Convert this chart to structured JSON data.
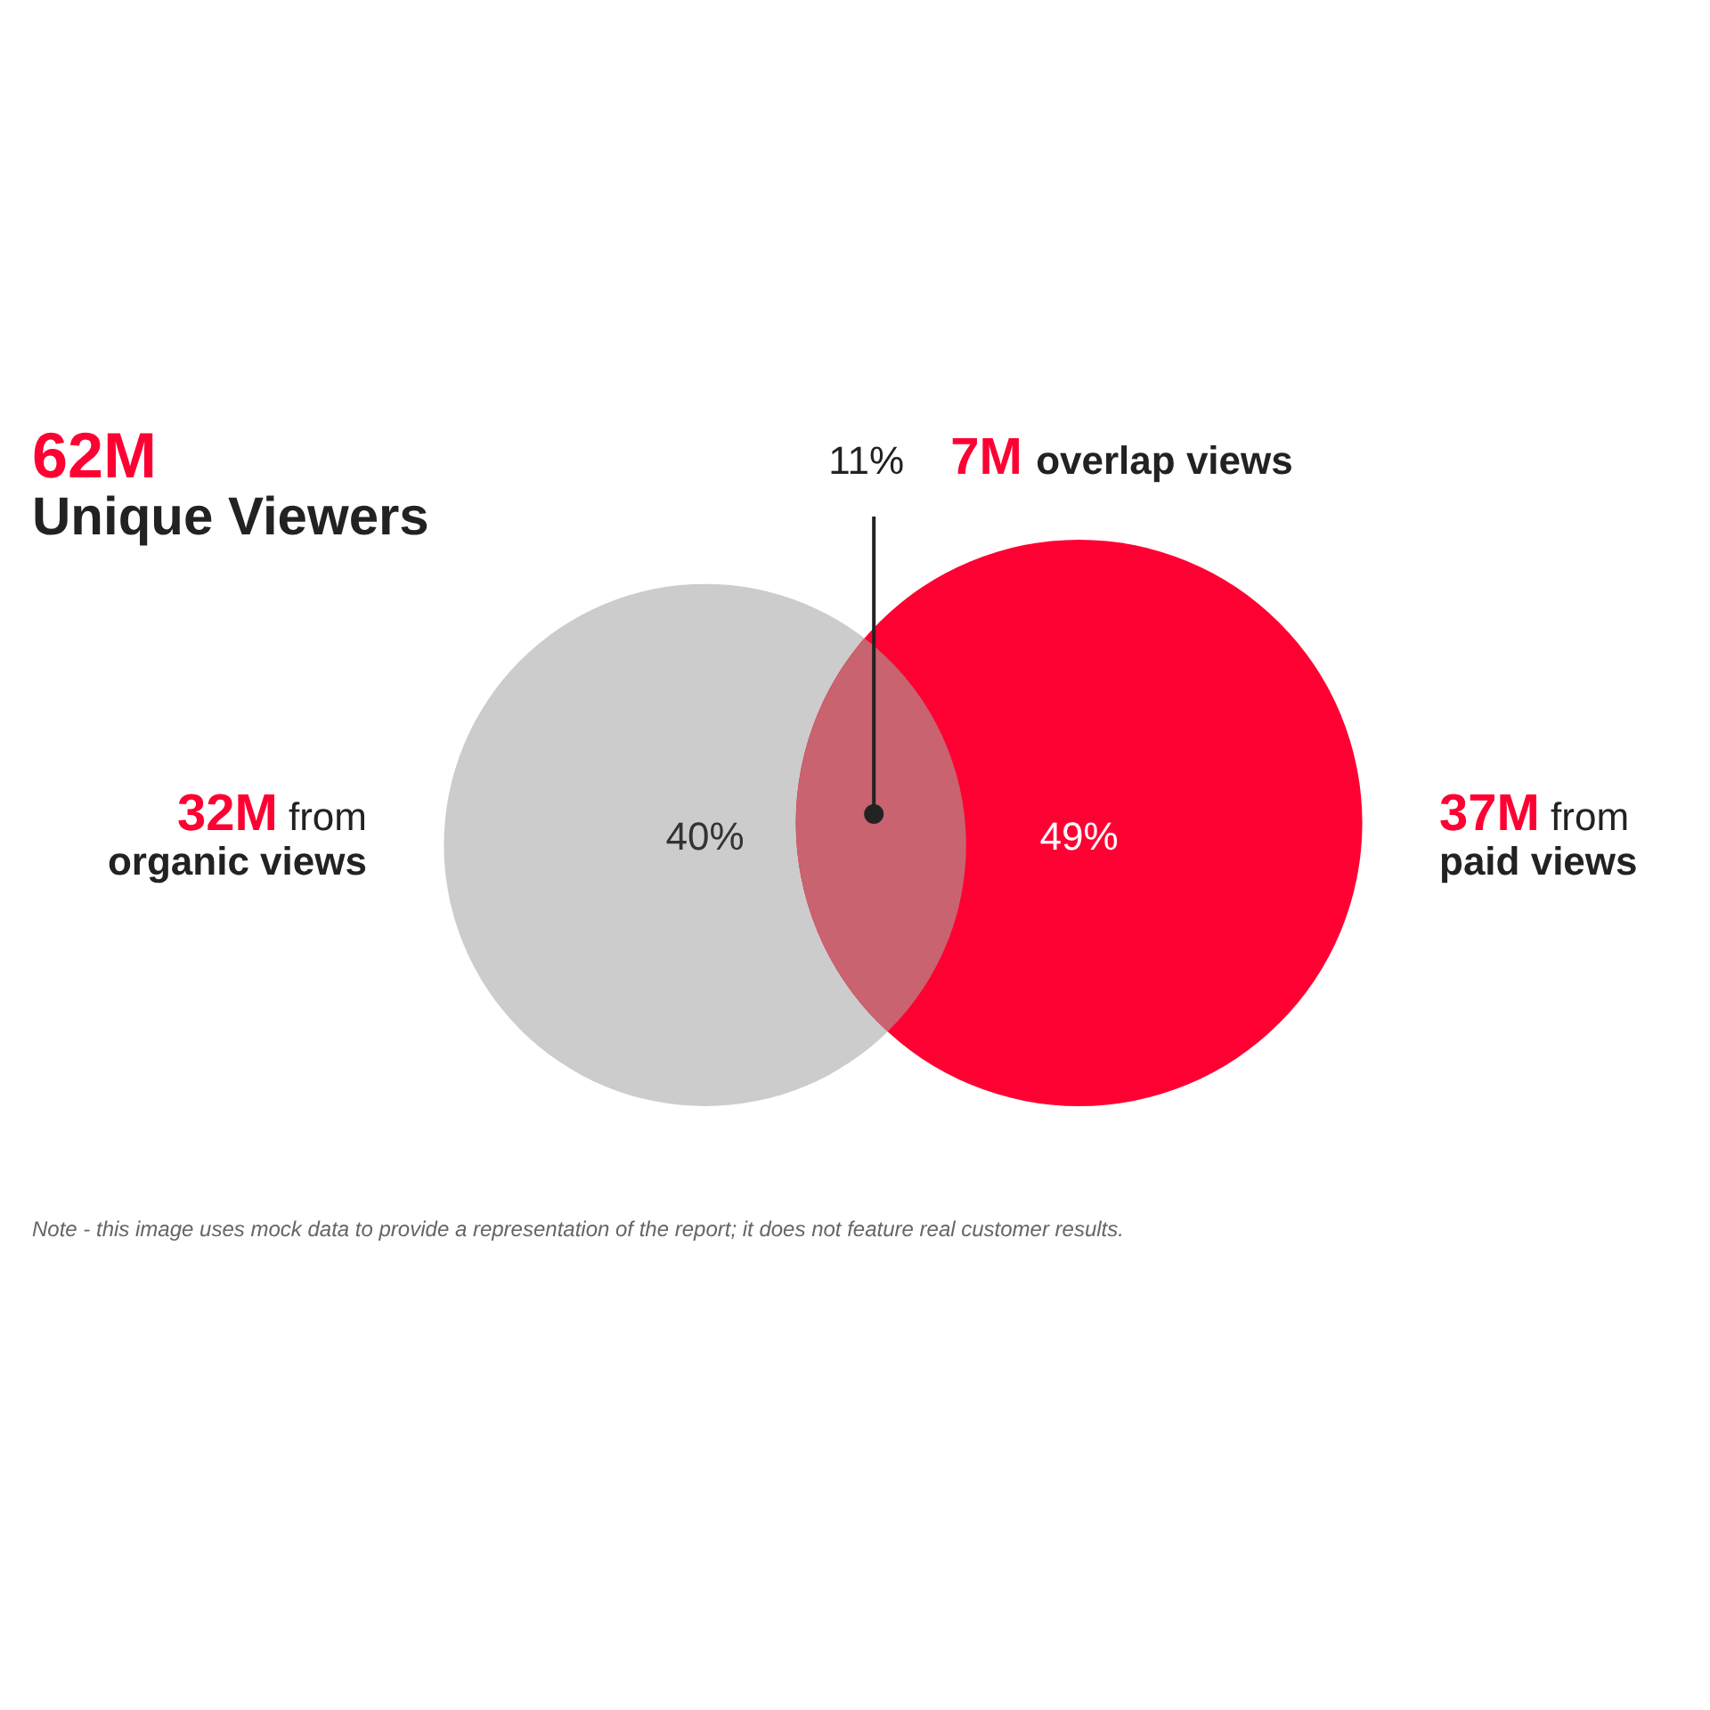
{
  "chart_data": {
    "type": "other",
    "title": "62M Unique Viewers",
    "categories": [
      "organic views",
      "paid views",
      "overlap views"
    ],
    "series": [
      {
        "color": "#ff0033",
        "values": [
          32,
          37,
          7
        ],
        "value_labels": [
          "32M from",
          "37M from",
          "7M"
        ]
      },
      {
        "colors": [
          "#cccccc",
          "#ff0033",
          "#c8636f"
        ],
        "values": [
          40,
          49,
          11
        ],
        "value_labels": [
          "40%",
          "49%",
          "11%"
        ]
      }
    ],
    "annotations": [
      "Note - this image uses mock data to provide a representation of the report; it does not feature real customer results."
    ]
  }
}
